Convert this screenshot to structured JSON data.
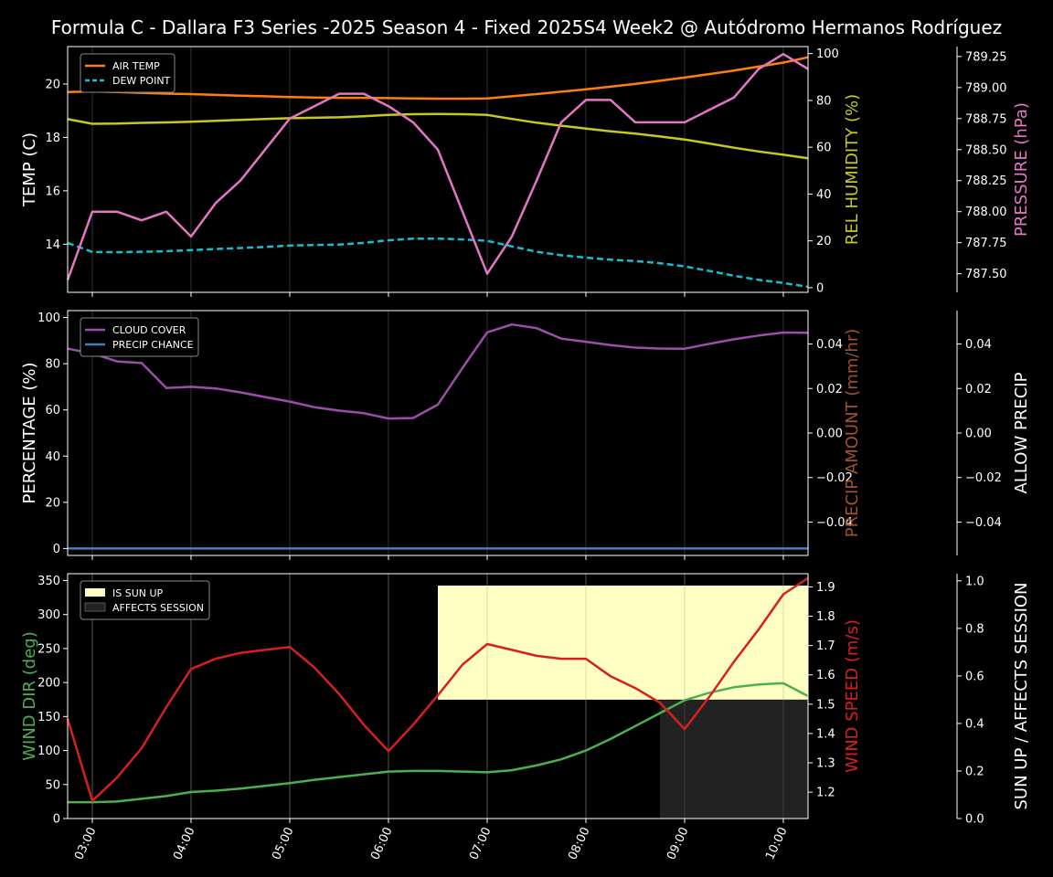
{
  "title": "Formula C - Dallara F3 Series -2025 Season 4 - Fixed 2025S4 Week2 @ Autódromo Hermanos Rodríguez",
  "colors": {
    "air_temp": "#ff7f0e",
    "dew_point": "#17becf",
    "humidity": "#c8c820",
    "pressure": "#e377c2",
    "cloud": "#9b4fa8",
    "precip": "#4a7fb5",
    "precip_amount_label": "#a0522d",
    "wind_dir": "#4caf50",
    "wind_speed": "#d62020",
    "sun_up": "#ffffc4",
    "affects_session": "#222222"
  },
  "x_ticks": [
    "03:00",
    "04:00",
    "05:00",
    "06:00",
    "07:00",
    "08:00",
    "09:00",
    "10:00"
  ],
  "chart_data": [
    {
      "type": "line",
      "name_key": "temperature-panel",
      "xlim": [
        2.75,
        10.25
      ],
      "ylabel": "TEMP (C)",
      "ylabel2": "REL HUMIDITY (%)",
      "ylabel3": "PRESSURE (hPa)",
      "ylim": [
        12.2,
        21.4
      ],
      "ylim2": [
        -2,
        103
      ],
      "ylim3": [
        787.35,
        789.33
      ],
      "yticks": [
        "14",
        "16",
        "18",
        "20"
      ],
      "yticks2": [
        "0",
        "20",
        "40",
        "60",
        "80",
        "100"
      ],
      "yticks3": [
        "787.50",
        "787.75",
        "788.00",
        "788.25",
        "788.50",
        "788.75",
        "789.00",
        "789.25"
      ],
      "legend": {
        "position": "top-left",
        "entries": [
          "AIR TEMP",
          "DEW POINT"
        ]
      },
      "x": [
        2.75,
        3.0,
        3.25,
        3.5,
        3.75,
        4.0,
        4.25,
        4.5,
        4.75,
        5.0,
        5.25,
        5.5,
        5.75,
        6.0,
        6.25,
        6.5,
        6.75,
        7.0,
        7.25,
        7.5,
        7.75,
        8.0,
        8.25,
        8.5,
        8.75,
        9.0,
        9.25,
        9.5,
        9.75,
        10.0,
        10.25
      ],
      "series": [
        {
          "name": "AIR TEMP",
          "axis": "left",
          "values": [
            19.7,
            19.72,
            19.7,
            19.67,
            19.64,
            19.62,
            19.59,
            19.56,
            19.54,
            19.51,
            19.49,
            19.48,
            19.48,
            19.47,
            19.46,
            19.45,
            19.45,
            19.46,
            19.54,
            19.62,
            19.71,
            19.8,
            19.9,
            20.0,
            20.12,
            20.24,
            20.37,
            20.5,
            20.65,
            20.8,
            21.0
          ]
        },
        {
          "name": "DEW POINT",
          "axis": "left",
          "values": [
            14.05,
            13.71,
            13.7,
            13.72,
            13.74,
            13.78,
            13.82,
            13.86,
            13.9,
            13.95,
            13.97,
            13.99,
            14.05,
            14.15,
            14.21,
            14.21,
            14.18,
            14.13,
            13.92,
            13.72,
            13.59,
            13.5,
            13.42,
            13.37,
            13.29,
            13.17,
            13.0,
            12.82,
            12.67,
            12.55,
            12.41
          ]
        },
        {
          "axis": "right",
          "values": [
            72.0,
            70.0,
            70.1,
            70.4,
            70.6,
            70.9,
            71.3,
            71.7,
            72.1,
            72.4,
            72.6,
            72.8,
            73.2,
            73.8,
            74.1,
            74.2,
            74.1,
            73.8,
            72.1,
            70.5,
            69.2,
            68.0,
            66.8,
            65.8,
            64.6,
            63.3,
            61.6,
            59.8,
            58.2,
            56.8,
            55.3
          ]
        },
        {
          "axis": "right2",
          "values": [
            787.45,
            788.0,
            788.0,
            787.93,
            788.0,
            787.8,
            788.07,
            788.25,
            788.5,
            788.75,
            788.85,
            788.95,
            788.95,
            788.85,
            788.72,
            788.5,
            788.0,
            787.5,
            787.8,
            788.25,
            788.72,
            788.9,
            788.9,
            788.72,
            788.72,
            788.72,
            788.82,
            788.92,
            789.15,
            789.27,
            789.15
          ]
        }
      ]
    },
    {
      "type": "line",
      "name_key": "cloud-panel",
      "xlim": [
        2.75,
        10.25
      ],
      "ylabel": "PERCENTAGE (%)",
      "ylabel2": "PRECIP AMOUNT (mm/hr)",
      "ylabel3": "ALLOW PRECIP",
      "ylim": [
        -3,
        103
      ],
      "ylim2": [
        -0.055,
        0.055
      ],
      "ylim3": [
        -0.055,
        0.055
      ],
      "yticks": [
        "0",
        "20",
        "40",
        "60",
        "80",
        "100"
      ],
      "yticks2": [
        "−0.04",
        "−0.02",
        "0.00",
        "0.02",
        "0.04"
      ],
      "yticks3": [
        "−0.04",
        "−0.02",
        "0.00",
        "0.02",
        "0.04"
      ],
      "legend": {
        "position": "top-left",
        "entries": [
          "CLOUD COVER",
          "PRECIP CHANCE"
        ]
      },
      "x": [
        2.75,
        3.0,
        3.25,
        3.5,
        3.75,
        4.0,
        4.25,
        4.5,
        4.75,
        5.0,
        5.25,
        5.5,
        5.75,
        6.0,
        6.25,
        6.5,
        6.75,
        7.0,
        7.25,
        7.5,
        7.75,
        8.0,
        8.25,
        8.5,
        8.75,
        9.0,
        9.25,
        9.5,
        9.75,
        10.0,
        10.25
      ],
      "series": [
        {
          "name": "CLOUD COVER",
          "axis": "left",
          "values": [
            86.5,
            84.5,
            81.0,
            80.3,
            69.5,
            70.0,
            69.3,
            67.6,
            65.6,
            63.6,
            61.2,
            59.7,
            58.6,
            56.3,
            56.5,
            62.3,
            78.2,
            93.6,
            97.0,
            95.4,
            90.9,
            89.5,
            88.1,
            87.0,
            86.6,
            86.5,
            88.6,
            90.6,
            92.2,
            93.5,
            93.4
          ]
        },
        {
          "name": "PRECIP CHANCE",
          "axis": "left",
          "values": [
            0,
            0,
            0,
            0,
            0,
            0,
            0,
            0,
            0,
            0,
            0,
            0,
            0,
            0,
            0,
            0,
            0,
            0,
            0,
            0,
            0,
            0,
            0,
            0,
            0,
            0,
            0,
            0,
            0,
            0,
            0
          ]
        }
      ]
    },
    {
      "type": "line",
      "name_key": "wind-panel",
      "xlim": [
        2.75,
        10.25
      ],
      "ylabel": "WIND DIR (deg)",
      "ylabel2": "WIND SPEED (m/s)",
      "ylabel3": "SUN UP / AFFECTS SESSION",
      "ylim": [
        0,
        360
      ],
      "ylim2": [
        1.11,
        1.945
      ],
      "ylim3": [
        0,
        1.03
      ],
      "yticks": [
        "0",
        "50",
        "100",
        "150",
        "200",
        "250",
        "300",
        "350"
      ],
      "yticks2": [
        "1.2",
        "1.3",
        "1.4",
        "1.5",
        "1.6",
        "1.7",
        "1.8",
        "1.9"
      ],
      "yticks3": [
        "0.0",
        "0.2",
        "0.4",
        "0.6",
        "0.8",
        "1.0"
      ],
      "legend": {
        "position": "top-left",
        "entries": [
          "IS SUN UP",
          "AFFECTS SESSION"
        ]
      },
      "spans": [
        {
          "name": "IS SUN UP",
          "x_start": 6.5,
          "x_end": 10.25,
          "y_start": 0.5,
          "y_end": 0.98,
          "axis": "right2"
        },
        {
          "name": "AFFECTS SESSION",
          "x_start": 8.75,
          "x_end": 10.25,
          "y_start": 0.0,
          "y_end": 0.5,
          "axis": "right2"
        }
      ],
      "x": [
        2.75,
        3.0,
        3.25,
        3.5,
        3.75,
        4.0,
        4.25,
        4.5,
        4.75,
        5.0,
        5.25,
        5.5,
        5.75,
        6.0,
        6.25,
        6.5,
        6.75,
        7.0,
        7.25,
        7.5,
        7.75,
        8.0,
        8.25,
        8.5,
        8.75,
        9.0,
        9.25,
        9.5,
        9.75,
        10.0,
        10.25
      ],
      "series": [
        {
          "axis": "left",
          "values": [
            24,
            24,
            25,
            29,
            33,
            39,
            41,
            44,
            48,
            52,
            57,
            61,
            65,
            69,
            70,
            70,
            69,
            68,
            71,
            78,
            87,
            100,
            117,
            136,
            155,
            174,
            185,
            193,
            197,
            199,
            180
          ]
        },
        {
          "axis": "right",
          "values": [
            1.45,
            1.17,
            1.25,
            1.35,
            1.49,
            1.62,
            1.655,
            1.675,
            1.685,
            1.695,
            1.625,
            1.535,
            1.43,
            1.34,
            1.43,
            1.53,
            1.635,
            1.705,
            1.685,
            1.665,
            1.655,
            1.655,
            1.595,
            1.555,
            1.505,
            1.415,
            1.525,
            1.645,
            1.755,
            1.875,
            1.93
          ]
        }
      ]
    }
  ]
}
